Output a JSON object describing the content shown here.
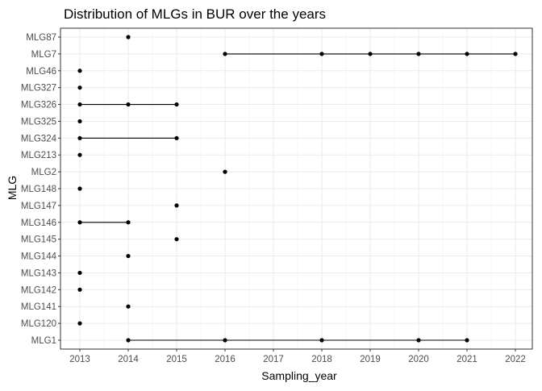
{
  "chart_data": {
    "type": "scatter",
    "title": "Distribution of MLGs in BUR over the years",
    "xlabel": "Sampling_year",
    "ylabel": "MLG",
    "xlim": [
      2012.6,
      2022.35
    ],
    "x_ticks": [
      2013,
      2014,
      2015,
      2016,
      2017,
      2018,
      2019,
      2020,
      2021,
      2022
    ],
    "grid": true,
    "legend": "none",
    "point_color": "#000000",
    "line_color": "#000000",
    "categories": [
      "MLG87",
      "MLG7",
      "MLG46",
      "MLG327",
      "MLG326",
      "MLG325",
      "MLG324",
      "MLG213",
      "MLG2",
      "MLG148",
      "MLG147",
      "MLG146",
      "MLG145",
      "MLG144",
      "MLG143",
      "MLG142",
      "MLG141",
      "MLG120",
      "MLG1"
    ],
    "points": [
      {
        "mlg": "MLG87",
        "years": [
          2014
        ]
      },
      {
        "mlg": "MLG7",
        "years": [
          2016,
          2018,
          2019,
          2020,
          2021,
          2022
        ]
      },
      {
        "mlg": "MLG46",
        "years": [
          2013
        ]
      },
      {
        "mlg": "MLG327",
        "years": [
          2013
        ]
      },
      {
        "mlg": "MLG326",
        "years": [
          2013,
          2014,
          2015
        ]
      },
      {
        "mlg": "MLG325",
        "years": [
          2013
        ]
      },
      {
        "mlg": "MLG324",
        "years": [
          2013,
          2015
        ]
      },
      {
        "mlg": "MLG213",
        "years": [
          2013
        ]
      },
      {
        "mlg": "MLG2",
        "years": [
          2016
        ]
      },
      {
        "mlg": "MLG148",
        "years": [
          2013
        ]
      },
      {
        "mlg": "MLG147",
        "years": [
          2015
        ]
      },
      {
        "mlg": "MLG146",
        "years": [
          2013,
          2014
        ]
      },
      {
        "mlg": "MLG145",
        "years": [
          2015
        ]
      },
      {
        "mlg": "MLG144",
        "years": [
          2014
        ]
      },
      {
        "mlg": "MLG143",
        "years": [
          2013
        ]
      },
      {
        "mlg": "MLG142",
        "years": [
          2013
        ]
      },
      {
        "mlg": "MLG141",
        "years": [
          2014
        ]
      },
      {
        "mlg": "MLG120",
        "years": [
          2013
        ]
      },
      {
        "mlg": "MLG1",
        "years": [
          2014,
          2016,
          2018,
          2020,
          2021
        ]
      }
    ]
  }
}
